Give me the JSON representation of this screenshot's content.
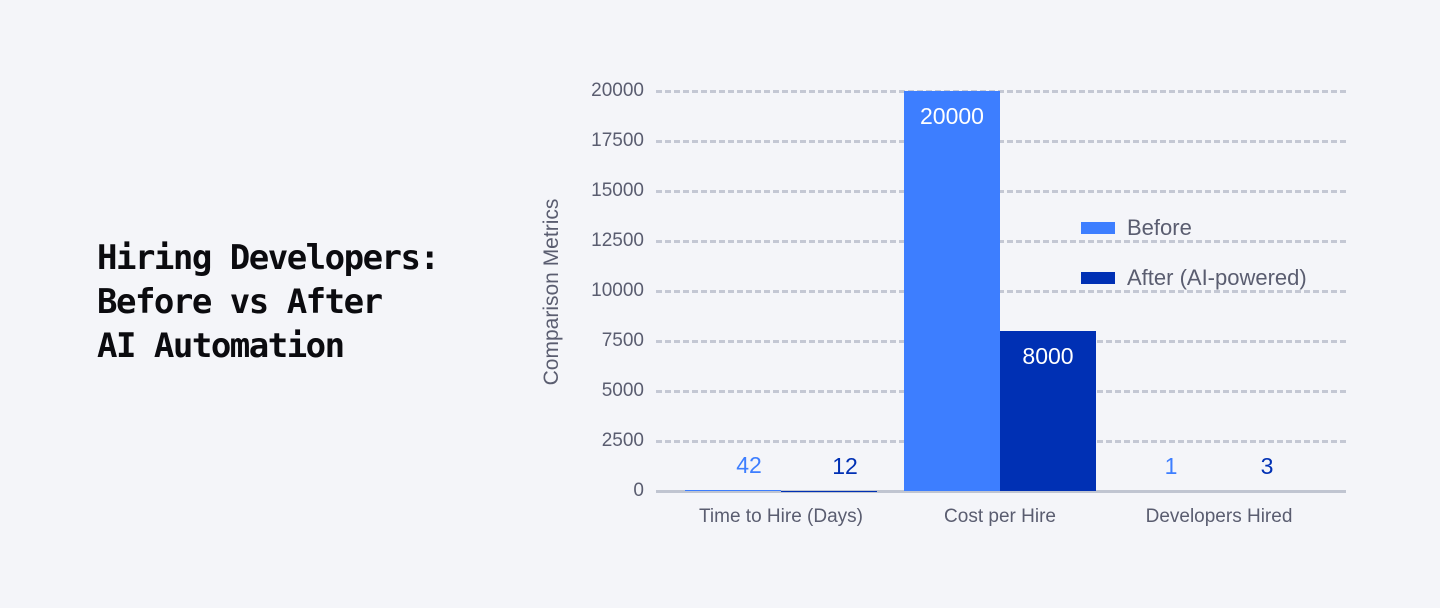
{
  "title_lines": [
    "Hiring Developers:",
    "Before vs After",
    "AI Automation"
  ],
  "colors": {
    "before": "#3d7eff",
    "after": "#0030b4",
    "grid": "#c4c8d4",
    "text": "#5a5d70",
    "background": "#f4f5f9"
  },
  "legend": [
    {
      "label": "Before",
      "color": "#3d7eff"
    },
    {
      "label": "After (AI-powered)",
      "color": "#0030b4"
    }
  ],
  "chart_data": {
    "type": "bar",
    "title": "Hiring Developers: Before vs After AI Automation",
    "xlabel": "",
    "ylabel": "Comparison Metrics",
    "ylim": [
      0,
      20000
    ],
    "yticks": [
      0,
      2500,
      5000,
      7500,
      10000,
      12500,
      15000,
      17500,
      20000
    ],
    "grid": true,
    "legend_position": "right, inside plot",
    "categories": [
      "Time to Hire (Days)",
      "Cost per Hire",
      "Developers Hired"
    ],
    "series": [
      {
        "name": "Before",
        "values": [
          42,
          20000,
          1
        ]
      },
      {
        "name": "After (AI-powered)",
        "values": [
          12,
          8000,
          3
        ]
      }
    ],
    "data_labels": {
      "Before": [
        "42",
        "20000",
        "1"
      ],
      "After (AI-powered)": [
        "12",
        "8000",
        "3"
      ]
    }
  }
}
